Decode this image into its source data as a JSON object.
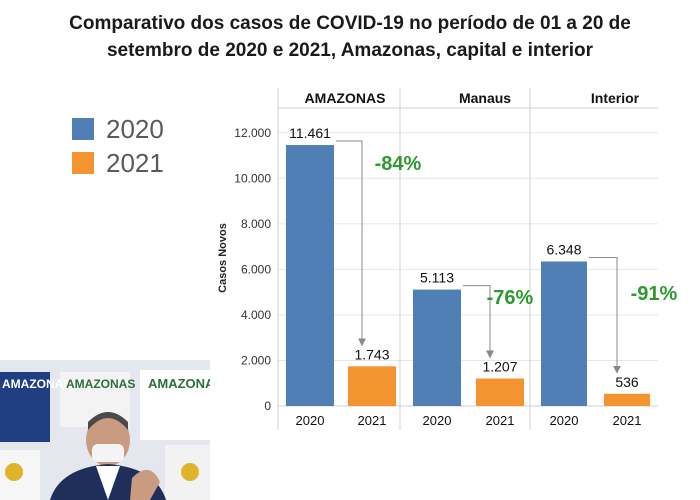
{
  "title": {
    "line1": "Comparativo dos casos de COVID-19 no período de 01 a 20 de",
    "line2": "setembro de 2020 e 2021, Amazonas, capital e interior"
  },
  "legend": [
    {
      "label": "2020",
      "color": "#4f7fb5"
    },
    {
      "label": "2021",
      "color": "#f39430"
    }
  ],
  "chart_data": {
    "type": "bar",
    "ylabel": "Casos Novos",
    "ylim": [
      0,
      13000
    ],
    "yticks": [
      0,
      2000,
      4000,
      6000,
      8000,
      10000,
      12000
    ],
    "ytick_labels": [
      "0",
      "2.000",
      "4.000",
      "6.000",
      "8.000",
      "10.000",
      "12.000"
    ],
    "groups": [
      {
        "name": "AMAZONAS",
        "categories": [
          "2020",
          "2021"
        ],
        "values": [
          11461,
          1743
        ],
        "value_labels": [
          "11.461",
          "1.743"
        ],
        "change": "-84%"
      },
      {
        "name": "Manaus",
        "categories": [
          "2020",
          "2021"
        ],
        "values": [
          5113,
          1207
        ],
        "value_labels": [
          "5.113",
          "1.207"
        ],
        "change": "-76%"
      },
      {
        "name": "Interior",
        "categories": [
          "2020",
          "2021"
        ],
        "values": [
          6348,
          536
        ],
        "value_labels": [
          "6.348",
          "536"
        ],
        "change": "-91%"
      }
    ],
    "colors": {
      "2020": "#4f7fb5",
      "2021": "#f39430",
      "change": "#2e9a2e"
    }
  },
  "video": {
    "banner_text": "AMAZONAS"
  }
}
